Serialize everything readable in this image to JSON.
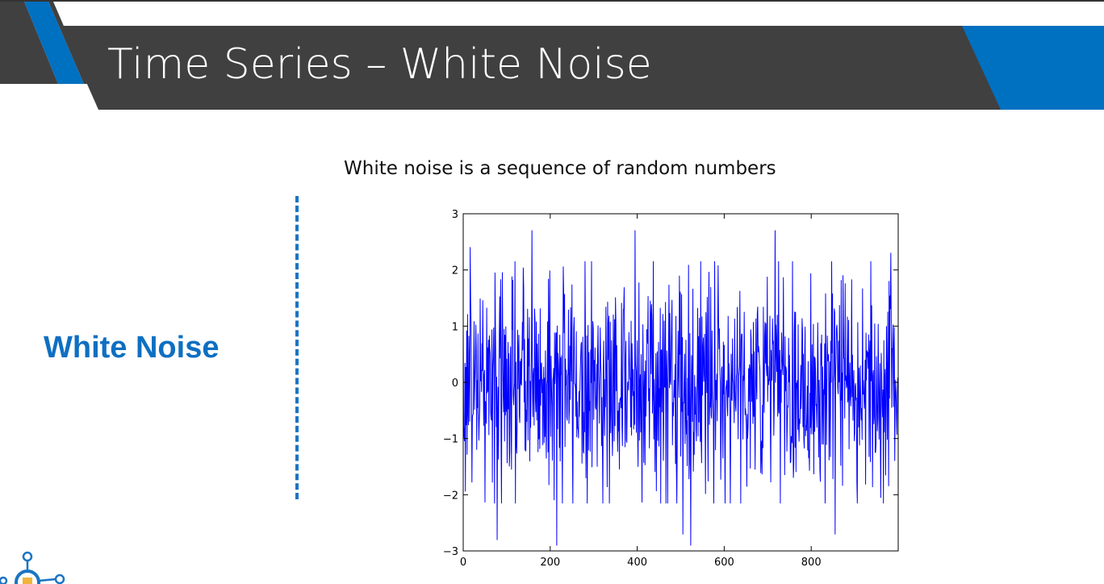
{
  "slide": {
    "title": "Time Series – White Noise",
    "side_label": "White Noise",
    "caption": "White noise is a sequence of random numbers"
  },
  "colors": {
    "banner_dark": "#404040",
    "banner_accent": "#0070c0",
    "label_blue": "#0e6fc2",
    "series_line": "#0000ff"
  },
  "icons": {
    "logo": "lightbulb-network-icon"
  },
  "chart_data": {
    "type": "line",
    "title": "",
    "xlabel": "",
    "ylabel": "",
    "xlim": [
      0,
      1000
    ],
    "ylim": [
      -3,
      3
    ],
    "x_ticks": [
      0,
      200,
      400,
      600,
      800
    ],
    "x_tick_labels": [
      "0",
      "200",
      "400",
      "600",
      "800"
    ],
    "y_ticks": [
      3,
      2,
      1,
      0,
      -1,
      -2,
      -3
    ],
    "y_tick_labels": [
      "3",
      "2",
      "1",
      "0",
      "−1",
      "−2",
      "−3"
    ],
    "grid": false,
    "series": [
      {
        "n_points": 1000,
        "x_start": 0,
        "x_step": 1,
        "distribution": "gaussian",
        "mean": 0,
        "std": 1,
        "notable_extremes": [
          {
            "x": 16,
            "y": 2.4
          },
          {
            "x": 78,
            "y": -2.8
          },
          {
            "x": 158,
            "y": 2.7
          },
          {
            "x": 215,
            "y": -2.9
          },
          {
            "x": 395,
            "y": 2.7
          },
          {
            "x": 505,
            "y": -2.7
          },
          {
            "x": 523,
            "y": -2.9
          },
          {
            "x": 717,
            "y": 2.7
          },
          {
            "x": 855,
            "y": -2.7
          },
          {
            "x": 983,
            "y": 2.3
          }
        ]
      }
    ]
  }
}
